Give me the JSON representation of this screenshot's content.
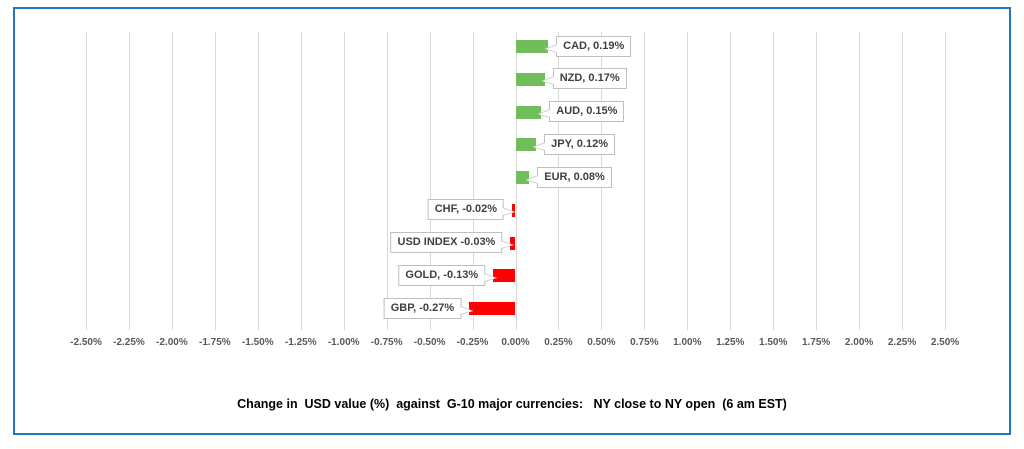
{
  "panel": {
    "border_color": "#2277C3",
    "background_color": "#FFFFFF"
  },
  "chart_data": {
    "type": "bar",
    "orientation": "horizontal",
    "title": "Change in  USD value (%)  against  G-10 major currencies:   NY close to NY open  (6 am EST)",
    "categories": [
      "CAD",
      "NZD",
      "AUD",
      "JPY",
      "EUR",
      "CHF",
      "USD INDEX",
      "GOLD",
      "GBP"
    ],
    "values": [
      0.19,
      0.17,
      0.15,
      0.12,
      0.08,
      -0.02,
      -0.03,
      -0.13,
      -0.27
    ],
    "data_labels": [
      "CAD, 0.19%",
      "NZD, 0.17%",
      "AUD, 0.15%",
      "JPY, 0.12%",
      "EUR, 0.08%",
      "CHF, -0.02%",
      "USD INDEX -0.03%",
      "GOLD, -0.13%",
      "GBP, -0.27%"
    ],
    "xlim": [
      -2.5,
      2.5
    ],
    "x_tick_step": 0.25,
    "x_tick_labels": [
      "-2.50%",
      "-2.25%",
      "-2.00%",
      "-1.75%",
      "-1.50%",
      "-1.25%",
      "-1.00%",
      "-0.75%",
      "-0.50%",
      "-0.25%",
      "0.00%",
      "0.25%",
      "0.50%",
      "0.75%",
      "1.00%",
      "1.25%",
      "1.50%",
      "1.75%",
      "2.00%",
      "2.25%",
      "2.50%"
    ],
    "positive_color": "#6FBE5A",
    "negative_color": "#FF0000",
    "gridline_color": "#D9D9D9",
    "axis_label_color": "#595959",
    "data_label_text_color": "#3F3F3F",
    "grid": "vertical",
    "legend": "none"
  }
}
